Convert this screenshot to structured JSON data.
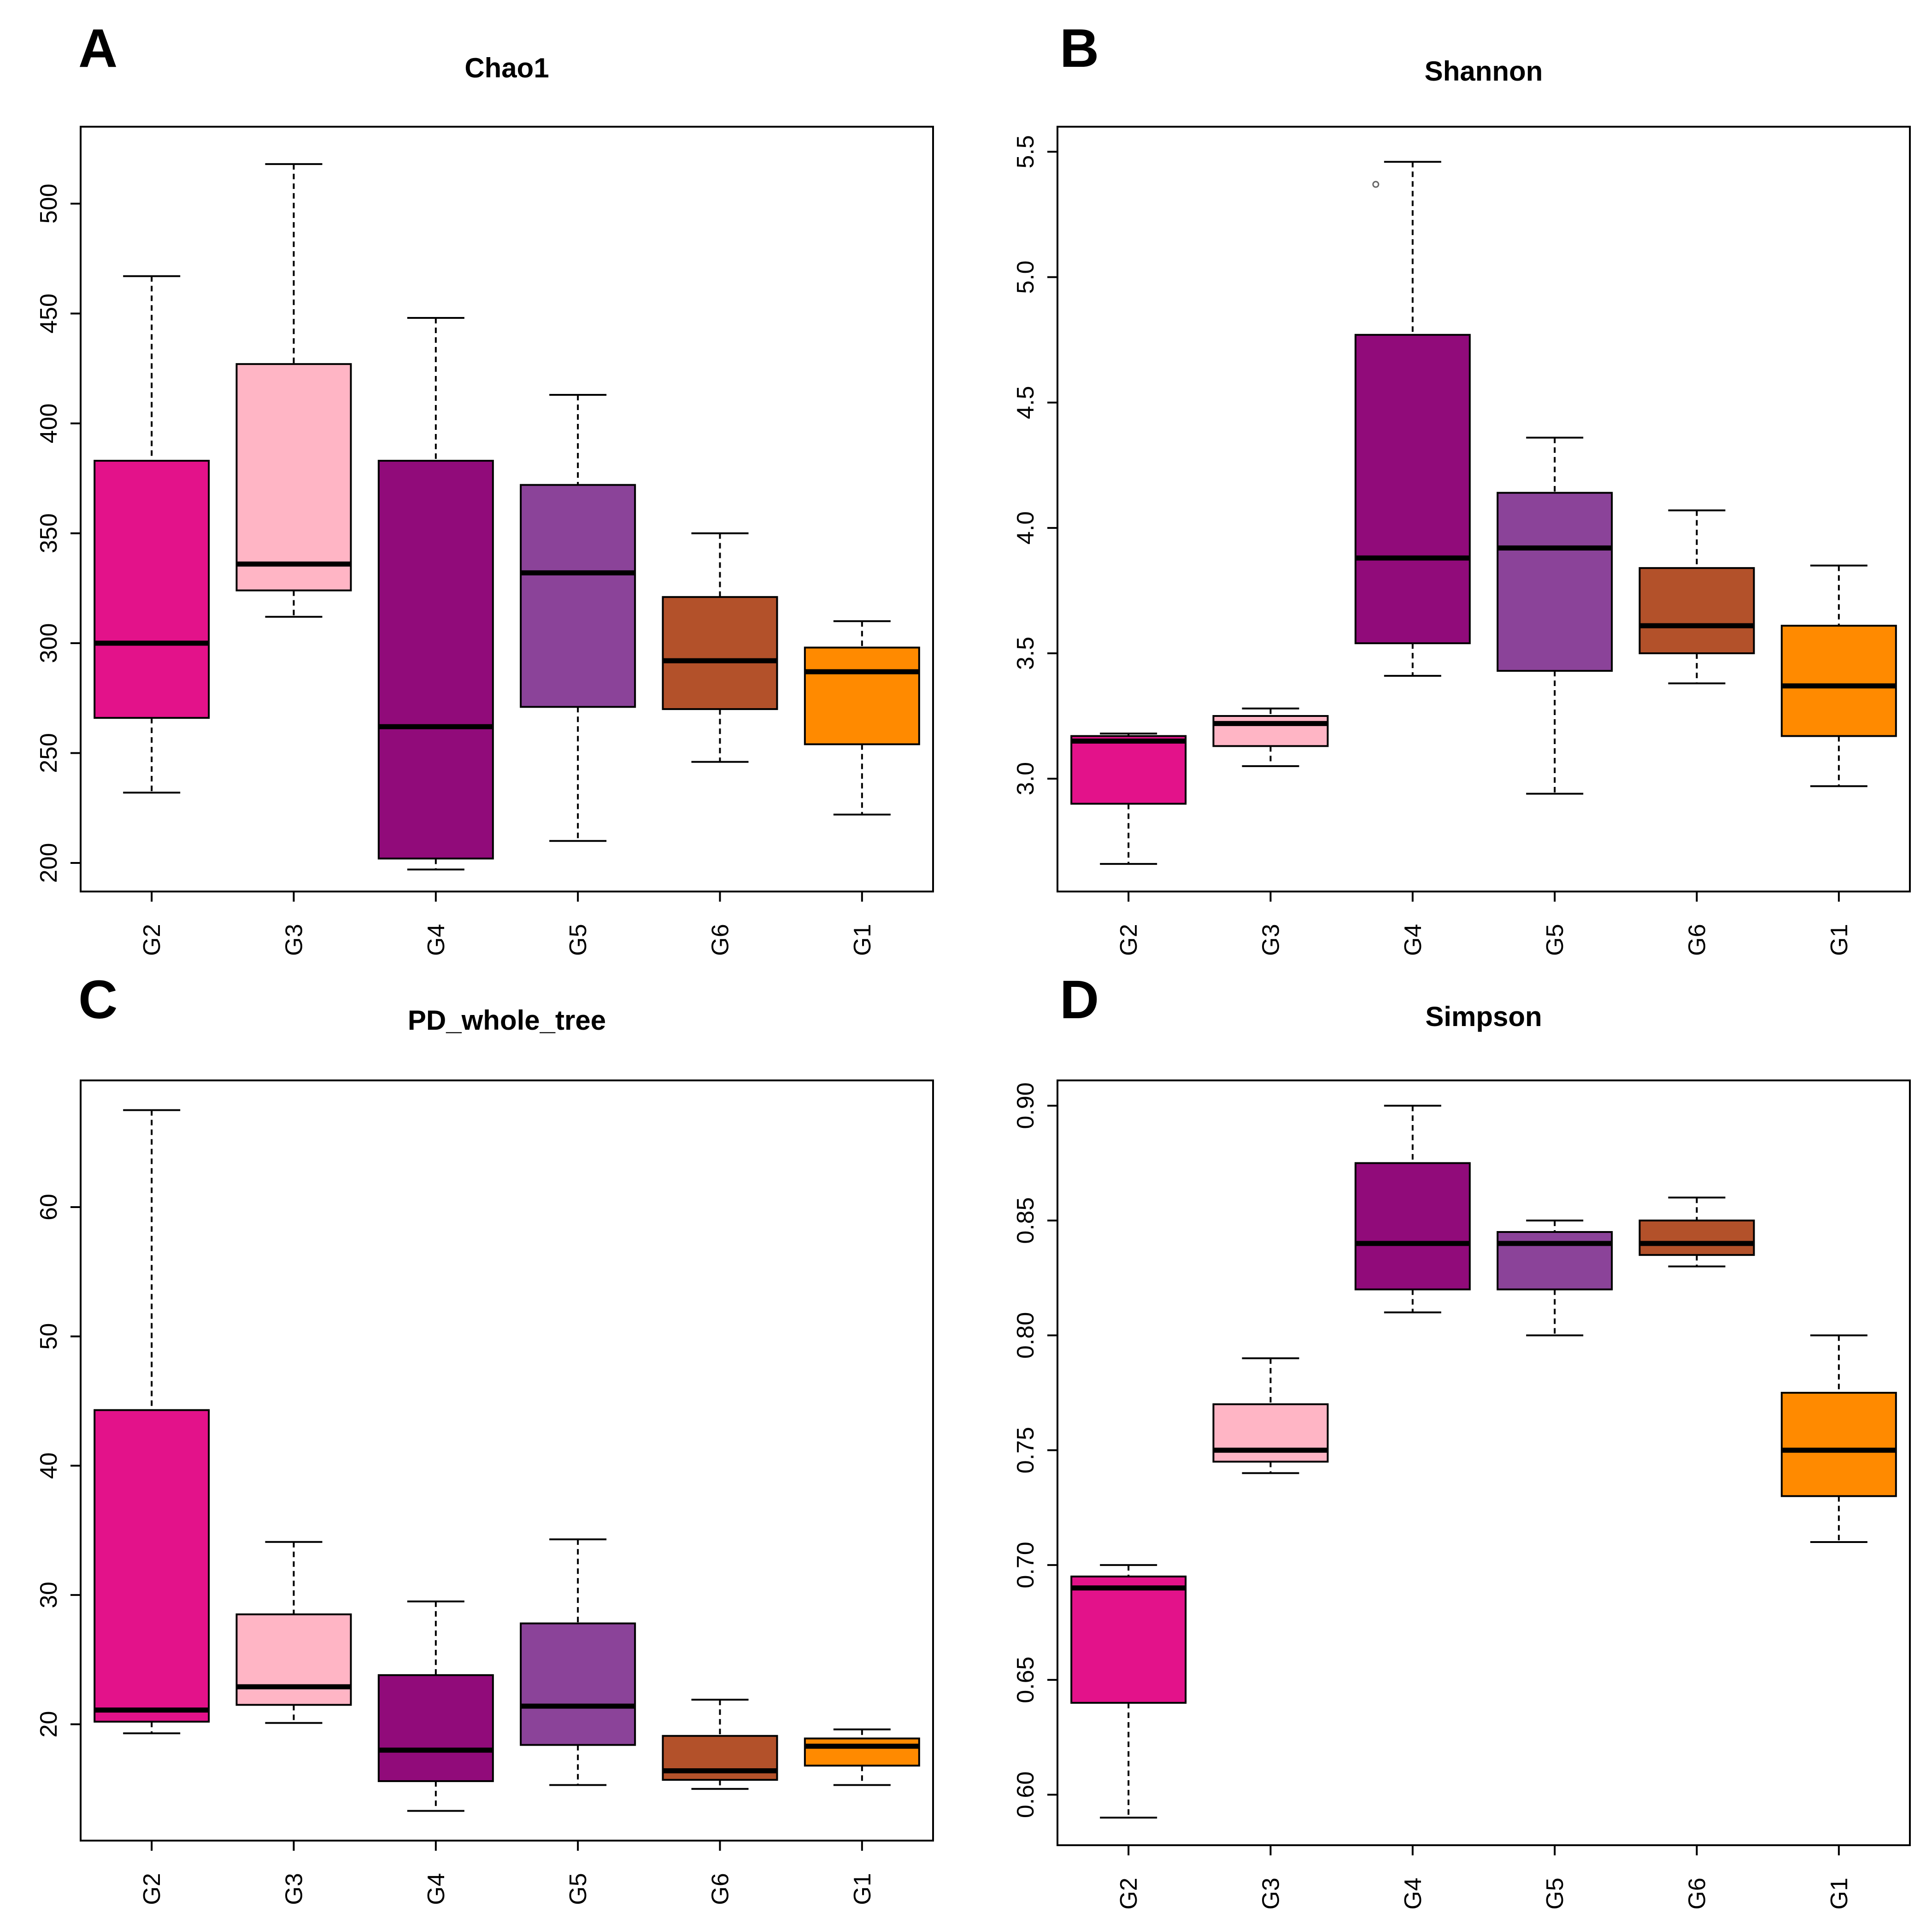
{
  "figure": {
    "group_colors": {
      "G2": "#E3128A",
      "G3": "#FFB5C5",
      "G4": "#910B7A",
      "G5": "#8B4399",
      "G6": "#B3512A",
      "G1": "#FF8A00"
    }
  },
  "chart_data": [
    {
      "id": "A",
      "letter": "A",
      "type": "box",
      "title": "Chao1",
      "xlabel": "",
      "ylabel": "",
      "categories": [
        "G2",
        "G3",
        "G4",
        "G5",
        "G6",
        "G1"
      ],
      "ylim": [
        187,
        535
      ],
      "yticks": [
        200,
        250,
        300,
        350,
        400,
        450,
        500
      ],
      "ytick_labels": [
        "200",
        "250",
        "300",
        "350",
        "400",
        "450",
        "500"
      ],
      "boxes": [
        {
          "group": "G2",
          "min": 232,
          "q1": 266,
          "median": 300,
          "q3": 383,
          "max": 467,
          "outliers": []
        },
        {
          "group": "G3",
          "min": 312,
          "q1": 324,
          "median": 336,
          "q3": 427,
          "max": 518,
          "outliers": []
        },
        {
          "group": "G4",
          "min": 197,
          "q1": 202,
          "median": 262,
          "q3": 383,
          "max": 448,
          "outliers": []
        },
        {
          "group": "G5",
          "min": 210,
          "q1": 271,
          "median": 332,
          "q3": 372,
          "max": 413,
          "outliers": []
        },
        {
          "group": "G6",
          "min": 246,
          "q1": 270,
          "median": 292,
          "q3": 321,
          "max": 350,
          "outliers": []
        },
        {
          "group": "G1",
          "min": 222,
          "q1": 254,
          "median": 287,
          "q3": 298,
          "max": 310,
          "outliers": []
        }
      ]
    },
    {
      "id": "B",
      "letter": "B",
      "type": "box",
      "title": "Shannon",
      "xlabel": "",
      "ylabel": "",
      "categories": [
        "G2",
        "G3",
        "G4",
        "G5",
        "G6",
        "G1"
      ],
      "ylim": [
        2.55,
        5.6
      ],
      "yticks": [
        3.0,
        3.5,
        4.0,
        4.5,
        5.0,
        5.5
      ],
      "ytick_labels": [
        "3.0",
        "3.5",
        "4.0",
        "4.5",
        "5.0",
        "5.5"
      ],
      "boxes": [
        {
          "group": "G2",
          "min": 2.66,
          "q1": 2.9,
          "median": 3.15,
          "q3": 3.17,
          "max": 3.18,
          "outliers": []
        },
        {
          "group": "G3",
          "min": 3.05,
          "q1": 3.13,
          "median": 3.22,
          "q3": 3.25,
          "max": 3.28,
          "outliers": []
        },
        {
          "group": "G4",
          "min": 3.41,
          "q1": 3.54,
          "median": 3.88,
          "q3": 4.77,
          "max": 5.46,
          "outliers": [
            5.37
          ]
        },
        {
          "group": "G5",
          "min": 2.94,
          "q1": 3.43,
          "median": 3.92,
          "q3": 4.14,
          "max": 4.36,
          "outliers": []
        },
        {
          "group": "G6",
          "min": 3.38,
          "q1": 3.5,
          "median": 3.61,
          "q3": 3.84,
          "max": 4.07,
          "outliers": []
        },
        {
          "group": "G1",
          "min": 2.97,
          "q1": 3.17,
          "median": 3.37,
          "q3": 3.61,
          "max": 3.85,
          "outliers": []
        }
      ]
    },
    {
      "id": "C",
      "letter": "C",
      "type": "box",
      "title": "PD_whole_tree",
      "xlabel": "",
      "ylabel": "",
      "categories": [
        "G2",
        "G3",
        "G4",
        "G5",
        "G6",
        "G1"
      ],
      "ylim": [
        11,
        69.8
      ],
      "yticks": [
        20,
        30,
        40,
        50,
        60
      ],
      "ytick_labels": [
        "20",
        "30",
        "40",
        "50",
        "60"
      ],
      "boxes": [
        {
          "group": "G2",
          "min": 19.3,
          "q1": 20.2,
          "median": 21.1,
          "q3": 44.3,
          "max": 67.5,
          "outliers": []
        },
        {
          "group": "G3",
          "min": 20.1,
          "q1": 21.5,
          "median": 22.9,
          "q3": 28.5,
          "max": 34.1,
          "outliers": []
        },
        {
          "group": "G4",
          "min": 13.3,
          "q1": 15.6,
          "median": 18.0,
          "q3": 23.8,
          "max": 29.5,
          "outliers": []
        },
        {
          "group": "G5",
          "min": 15.3,
          "q1": 18.4,
          "median": 21.4,
          "q3": 27.8,
          "max": 34.3,
          "outliers": []
        },
        {
          "group": "G6",
          "min": 15.0,
          "q1": 15.7,
          "median": 16.4,
          "q3": 19.1,
          "max": 21.9,
          "outliers": []
        },
        {
          "group": "G1",
          "min": 15.3,
          "q1": 16.8,
          "median": 18.3,
          "q3": 18.9,
          "max": 19.6,
          "outliers": []
        }
      ]
    },
    {
      "id": "D",
      "letter": "D",
      "type": "box",
      "title": "Simpson",
      "xlabel": "",
      "ylabel": "",
      "categories": [
        "G2",
        "G3",
        "G4",
        "G5",
        "G6",
        "G1"
      ],
      "ylim": [
        0.578,
        0.911
      ],
      "yticks": [
        0.6,
        0.65,
        0.7,
        0.75,
        0.8,
        0.85,
        0.9
      ],
      "ytick_labels": [
        "0.60",
        "0.65",
        "0.70",
        "0.75",
        "0.80",
        "0.85",
        "0.90"
      ],
      "boxes": [
        {
          "group": "G2",
          "min": 0.59,
          "q1": 0.64,
          "median": 0.69,
          "q3": 0.695,
          "max": 0.7,
          "outliers": []
        },
        {
          "group": "G3",
          "min": 0.74,
          "q1": 0.745,
          "median": 0.75,
          "q3": 0.77,
          "max": 0.79,
          "outliers": []
        },
        {
          "group": "G4",
          "min": 0.81,
          "q1": 0.82,
          "median": 0.84,
          "q3": 0.875,
          "max": 0.9,
          "outliers": []
        },
        {
          "group": "G5",
          "min": 0.8,
          "q1": 0.82,
          "median": 0.84,
          "q3": 0.845,
          "max": 0.85,
          "outliers": []
        },
        {
          "group": "G6",
          "min": 0.83,
          "q1": 0.835,
          "median": 0.84,
          "q3": 0.85,
          "max": 0.86,
          "outliers": []
        },
        {
          "group": "G1",
          "min": 0.71,
          "q1": 0.73,
          "median": 0.75,
          "q3": 0.775,
          "max": 0.8,
          "outliers": []
        }
      ]
    }
  ]
}
